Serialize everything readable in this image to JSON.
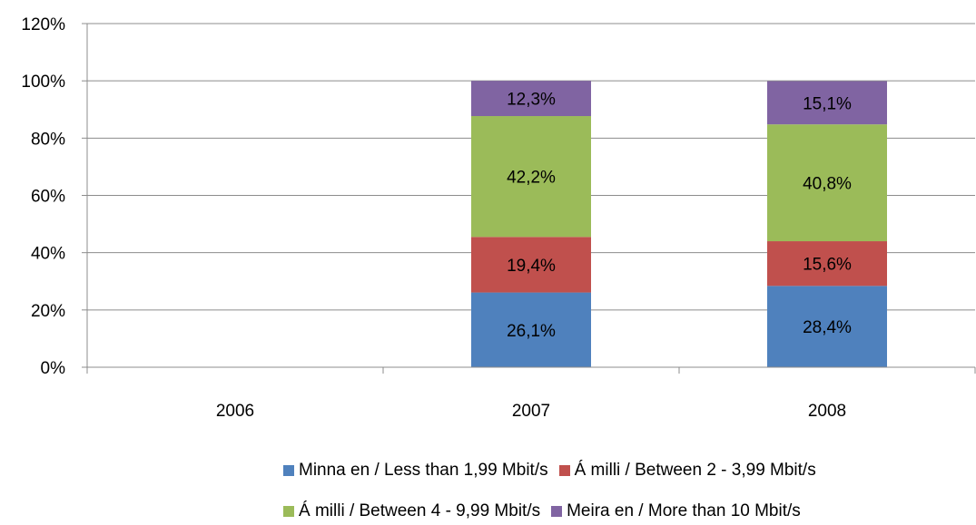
{
  "chart_data": {
    "type": "bar",
    "stacked": true,
    "categories": [
      "2006",
      "2007",
      "2008"
    ],
    "series": [
      {
        "name": "Minna en / Less than 1,99 Mbit/s",
        "color": "#4F81BD",
        "values": [
          null,
          26.1,
          28.4
        ],
        "labels": [
          "",
          "26,1%",
          "28,4%"
        ]
      },
      {
        "name": "Á milli / Between 2 - 3,99 Mbit/s",
        "color": "#C0504D",
        "values": [
          null,
          19.4,
          15.6
        ],
        "labels": [
          "",
          "19,4%",
          "15,6%"
        ]
      },
      {
        "name": "Á milli / Between 4 - 9,99 Mbit/s",
        "color": "#9BBB59",
        "values": [
          null,
          42.2,
          40.8
        ],
        "labels": [
          "",
          "42,2%",
          "40,8%"
        ]
      },
      {
        "name": "Meira en / More than 10 Mbit/s",
        "color": "#8064A2",
        "values": [
          null,
          12.3,
          15.1
        ],
        "labels": [
          "",
          "12,3%",
          "15,1%"
        ]
      }
    ],
    "ylim": [
      0,
      120
    ],
    "yticks": [
      "0%",
      "20%",
      "40%",
      "60%",
      "80%",
      "100%",
      "120%"
    ],
    "ytick_values": [
      0,
      20,
      40,
      60,
      80,
      100,
      120
    ],
    "grid": true,
    "legend": "bottom"
  }
}
